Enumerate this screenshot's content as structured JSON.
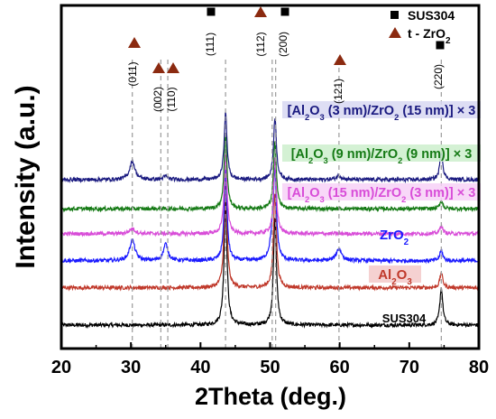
{
  "chart_data": {
    "type": "line",
    "title": "",
    "xlabel": "2Theta (deg.)",
    "ylabel": "Intensity (a.u.)",
    "xlim": [
      20,
      80
    ],
    "x_ticks": [
      "20",
      "30",
      "40",
      "50",
      "60",
      "70",
      "80"
    ],
    "y_ticks_shown": false,
    "grid": false,
    "legend": {
      "placement": "top-right",
      "entries": [
        {
          "label": "SUS304",
          "marker": "square",
          "color": "#000000"
        },
        {
          "label": "t - ZrO",
          "sub": "2",
          "marker": "triangle",
          "color": "#8B2A10"
        }
      ]
    },
    "series": [
      {
        "name": "SUS304",
        "color": "#000000",
        "baseline": 0.0,
        "peaks": [
          [
            43.6,
            3.0,
            0.25
          ],
          [
            50.7,
            2.6,
            0.25
          ],
          [
            74.6,
            0.9,
            0.25
          ]
        ]
      },
      {
        "name": "Al2O3",
        "color": "#c0392b",
        "baseline": 0.9,
        "peaks": [
          [
            43.6,
            2.6,
            0.25
          ],
          [
            50.7,
            2.3,
            0.25
          ],
          [
            74.6,
            0.35,
            0.25
          ]
        ]
      },
      {
        "name": "ZrO2",
        "color": "#1a1aff",
        "baseline": 1.55,
        "peaks": [
          [
            30.2,
            0.5,
            0.45
          ],
          [
            35.0,
            0.4,
            0.4
          ],
          [
            43.6,
            2.2,
            0.25
          ],
          [
            50.3,
            0.45,
            0.4
          ],
          [
            50.7,
            2.0,
            0.25
          ],
          [
            59.9,
            0.3,
            0.45
          ],
          [
            74.6,
            0.25,
            0.25
          ]
        ]
      },
      {
        "name": "[Al2O3 (15 nm)/ZrO2 (3 nm)] × 3",
        "color": "#d84cd8",
        "baseline": 2.2,
        "peaks": [
          [
            30.2,
            0.12,
            0.5
          ],
          [
            43.6,
            1.9,
            0.25
          ],
          [
            50.7,
            1.8,
            0.25
          ],
          [
            74.6,
            0.2,
            0.25
          ]
        ]
      },
      {
        "name": "[Al2O3 (9 nm)/ZrO2 (9 nm)] × 3",
        "color": "#157a15",
        "baseline": 2.8,
        "peaks": [
          [
            43.6,
            1.8,
            0.25
          ],
          [
            50.7,
            1.6,
            0.25
          ],
          [
            74.6,
            0.2,
            0.25
          ]
        ]
      },
      {
        "name": "[Al2O3 (3 nm)/ZrO2 (15 nm)] × 3",
        "color": "#1a1a80",
        "baseline": 3.5,
        "peaks": [
          [
            30.2,
            0.45,
            0.45
          ],
          [
            35.0,
            0.08,
            0.4
          ],
          [
            43.6,
            1.6,
            0.25
          ],
          [
            50.7,
            1.5,
            0.25
          ],
          [
            59.9,
            0.1,
            0.45
          ],
          [
            74.6,
            0.7,
            0.25
          ]
        ]
      }
    ],
    "series_labels": [
      {
        "text": "SUS304",
        "color": "#000000"
      },
      {
        "text": "Al",
        "sub1": "2",
        "mid": "O",
        "sub2": "3",
        "tail": "",
        "color": "#c0392b"
      },
      {
        "text": "ZrO",
        "sub1": "2",
        "color": "#1a1aff"
      },
      {
        "text": "[Al",
        "sub1": "2",
        "mid": "O",
        "sub2": "3",
        "tail": " (15 nm)/ZrO",
        "sub3": "2",
        "end": " (3 nm)] × 3",
        "color": "#d84cd8"
      },
      {
        "text": "[Al",
        "sub1": "2",
        "mid": "O",
        "sub2": "3",
        "tail": " (9 nm)/ZrO",
        "sub3": "2",
        "end": " (9 nm)] × 3",
        "color": "#157a15"
      },
      {
        "text": "[Al",
        "sub1": "2",
        "mid": "O",
        "sub2": "3",
        "tail": " (3 nm)/ZrO",
        "sub3": "2",
        "end": " (15 nm)] × 3",
        "color": "#1a1a80"
      }
    ],
    "peak_annotations": [
      {
        "x": 30.2,
        "label": "(011)",
        "marker": "triangle"
      },
      {
        "x": 34.3,
        "label": "(002)",
        "marker": "triangle"
      },
      {
        "x": 35.3,
        "label": "(110)",
        "marker": "triangle"
      },
      {
        "x": 43.6,
        "label": "(111)",
        "marker": "square"
      },
      {
        "x": 50.3,
        "label": "(112)",
        "marker": "triangle"
      },
      {
        "x": 50.8,
        "label": "(200)",
        "marker": "square"
      },
      {
        "x": 59.9,
        "label": "(121)",
        "marker": "triangle"
      },
      {
        "x": 74.6,
        "label": "(220)",
        "marker": "square"
      }
    ]
  }
}
